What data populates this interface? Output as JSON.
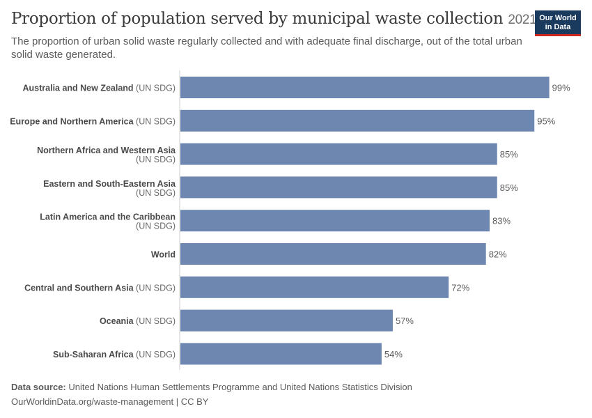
{
  "header": {
    "title": "Proportion of population served by municipal waste collection",
    "year": "2021",
    "subtitle": "The proportion of urban solid waste regularly collected and with adequate final discharge, out of the total urban solid waste generated."
  },
  "logo": {
    "line1": "Our World",
    "line2": "in Data"
  },
  "footer": {
    "source_label": "Data source:",
    "source_text": "United Nations Human Settlements Programme and United Nations Statistics Division",
    "url_text": "OurWorldinData.org/waste-management | CC BY"
  },
  "colors": {
    "bar": "#6d87b0",
    "axis": "#cccccc",
    "label_bold": "#4a4a4a",
    "label_light": "#6b6b6b"
  },
  "chart_data": {
    "type": "bar",
    "orientation": "horizontal",
    "unit": "%",
    "xlim": [
      0,
      100
    ],
    "categories": [
      {
        "name": "Australia and New Zealand",
        "suffix": "(UN SDG)",
        "wrap": false
      },
      {
        "name": "Europe and Northern America",
        "suffix": "(UN SDG)",
        "wrap": false
      },
      {
        "name": "Northern Africa and Western Asia",
        "suffix": "(UN SDG)",
        "wrap": true
      },
      {
        "name": "Eastern and South-Eastern Asia",
        "suffix": "(UN SDG)",
        "wrap": true
      },
      {
        "name": "Latin America and the Caribbean",
        "suffix": "(UN SDG)",
        "wrap": true
      },
      {
        "name": "World",
        "suffix": "",
        "wrap": false
      },
      {
        "name": "Central and Southern Asia",
        "suffix": "(UN SDG)",
        "wrap": false
      },
      {
        "name": "Oceania",
        "suffix": "(UN SDG)",
        "wrap": false
      },
      {
        "name": "Sub-Saharan Africa",
        "suffix": "(UN SDG)",
        "wrap": false
      }
    ],
    "values": [
      99,
      95,
      85,
      85,
      83,
      82,
      72,
      57,
      54
    ],
    "value_labels": [
      "99%",
      "95%",
      "85%",
      "85%",
      "83%",
      "82%",
      "72%",
      "57%",
      "54%"
    ]
  }
}
